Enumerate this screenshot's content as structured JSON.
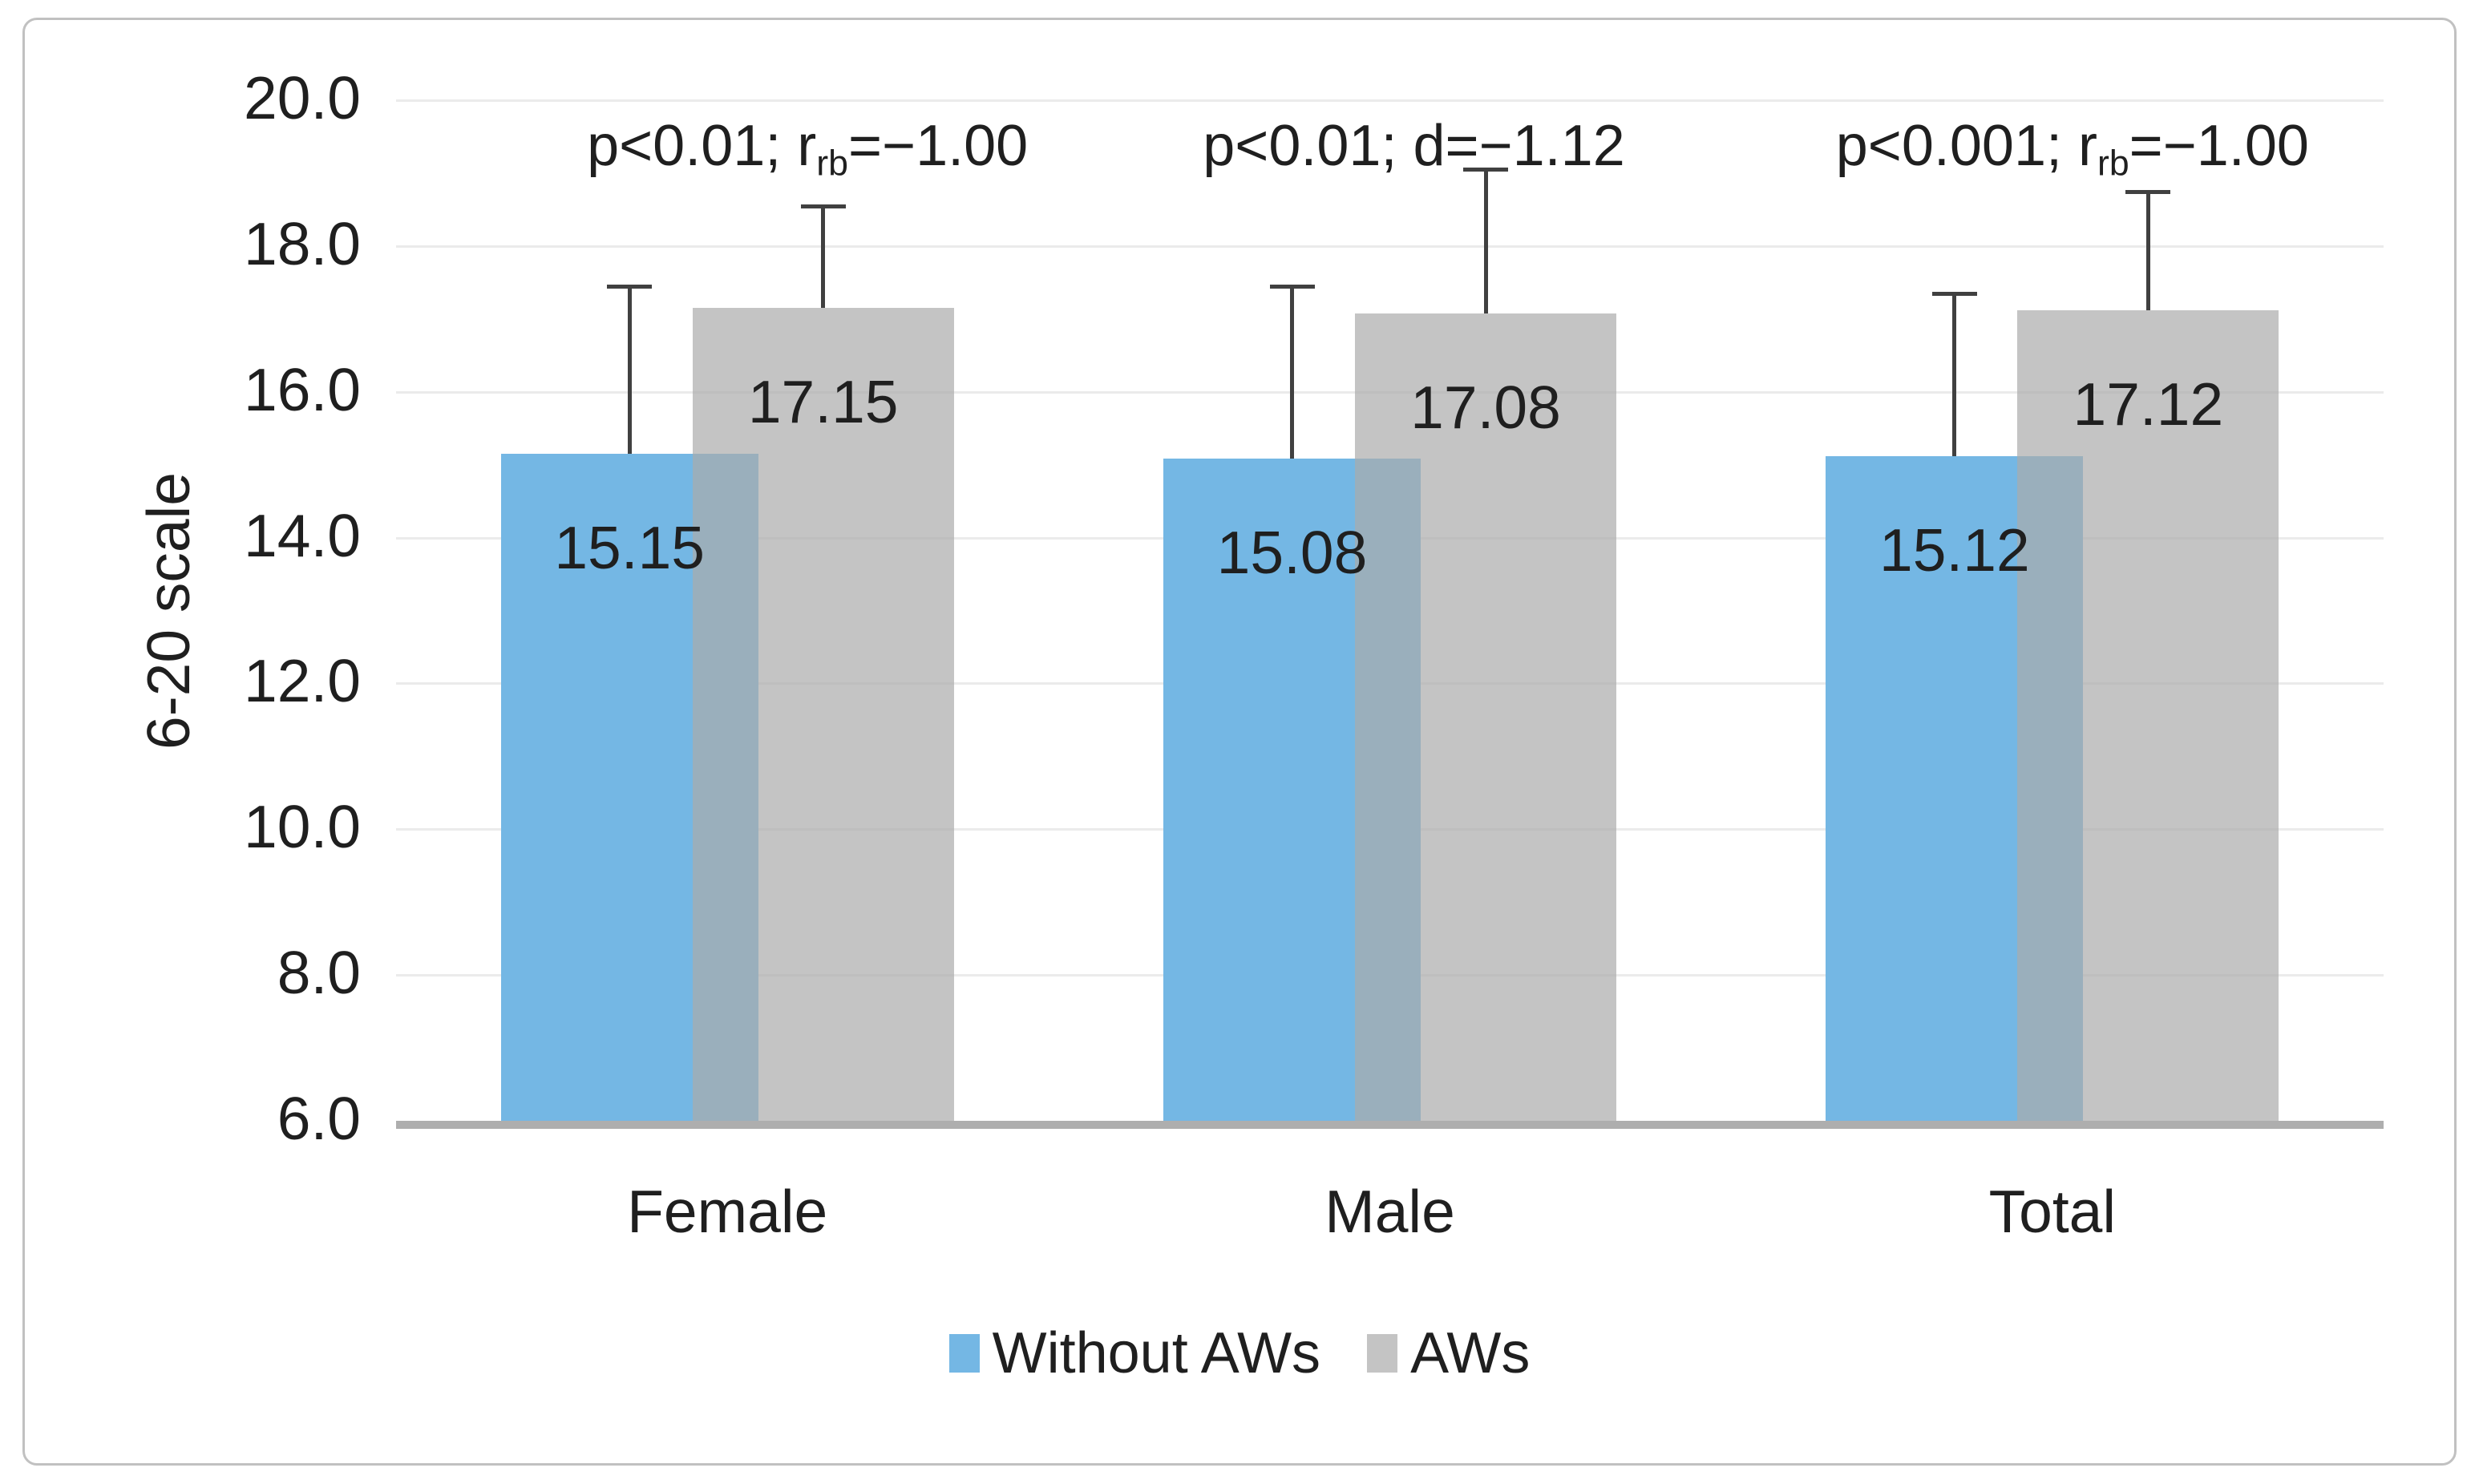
{
  "figure": {
    "background": "#FFFFFF",
    "border_color": "#C1C1C1"
  },
  "chart_data": {
    "type": "bar",
    "title": "",
    "xlabel": "",
    "ylabel": "6-20 scale",
    "ylim": [
      6,
      20
    ],
    "yticks": [
      "20.0",
      "18.0",
      "16.0",
      "14.0",
      "12.0",
      "10.0",
      "8.0",
      "6.0"
    ],
    "grid": true,
    "legend_position": "bottom",
    "categories": [
      "Female",
      "Male",
      "Total"
    ],
    "series": [
      {
        "name": "Without AWs",
        "color": "#74B7E4",
        "opacity": 1,
        "values": [
          15.15,
          15.08,
          15.12
        ],
        "error_bar_tops": [
          17.45,
          17.45,
          17.35
        ]
      },
      {
        "name": "AWs",
        "color": "#ABABAB",
        "opacity": 0.7,
        "rendered_color": "#C4C4C4",
        "values": [
          17.15,
          17.08,
          17.12
        ],
        "error_bar_tops": [
          18.55,
          19.05,
          18.75
        ]
      }
    ],
    "value_label_format": "0.00",
    "annotations": [
      {
        "category": "Female",
        "parts": [
          {
            "t": "p<0.01; r"
          },
          {
            "t": "rb",
            "sub": true
          },
          {
            "t": "=−1.00"
          }
        ]
      },
      {
        "category": "Male",
        "parts": [
          {
            "t": "p<0.01; d=−1.12"
          }
        ]
      },
      {
        "category": "Total",
        "parts": [
          {
            "t": "p<0.001; r"
          },
          {
            "t": "rb",
            "sub": true
          },
          {
            "t": "=−1.00"
          }
        ]
      }
    ],
    "colors": {
      "gridline": "#EBEBEB",
      "axis_line": "#AEAEAE",
      "error_bar": "#404040",
      "text": "#1F1F1F"
    }
  },
  "legend": {
    "items": [
      {
        "label": "Without AWs",
        "color": "#74B7E4"
      },
      {
        "label": "AWs",
        "color": "#C4C4C4"
      }
    ]
  }
}
